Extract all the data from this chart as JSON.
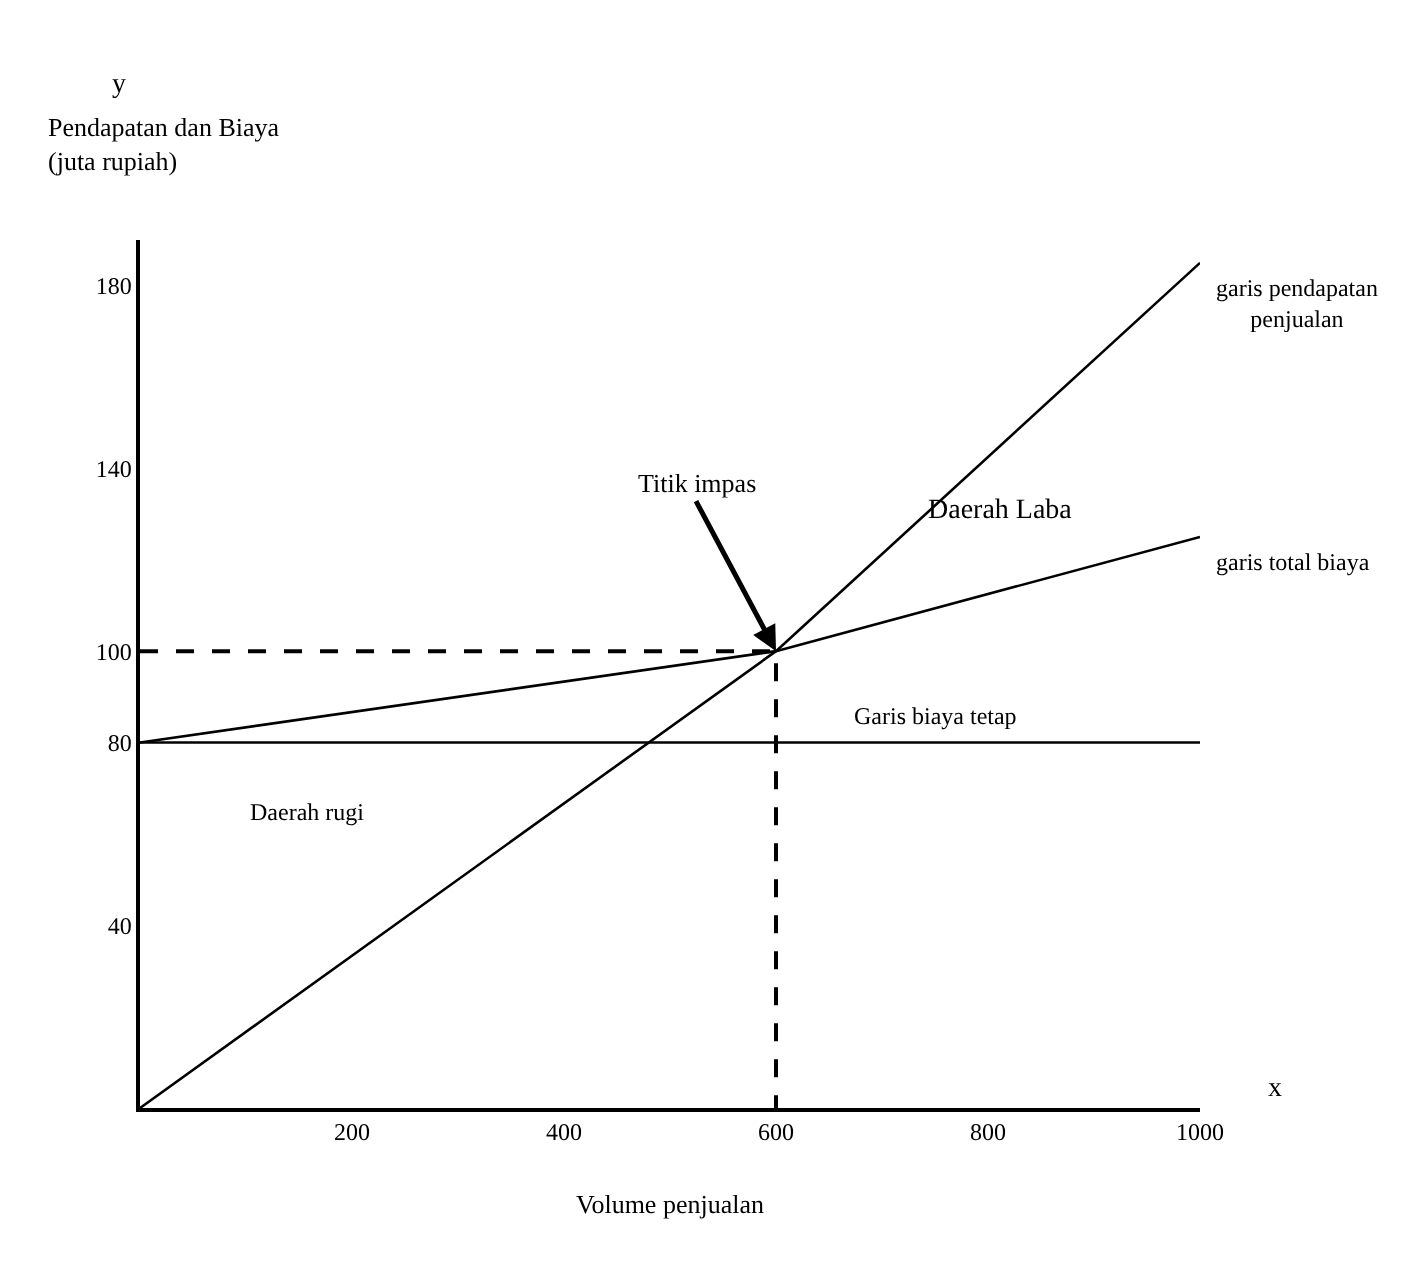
{
  "chart_data": {
    "type": "line",
    "xlabel": "Volume penjualan",
    "ylabel": "Pendapatan dan Biaya\n(juta rupiah)",
    "xlim": [
      0,
      1000
    ],
    "ylim": [
      0,
      190
    ],
    "xticks": [
      200,
      400,
      600,
      800,
      1000
    ],
    "yticks": [
      40,
      80,
      100,
      140,
      180
    ],
    "legend": false,
    "marker": "none",
    "series": [
      {
        "name": "garis pendapatan\npenjualan",
        "color": "#000000",
        "x": [
          0,
          600,
          1000
        ],
        "values": [
          0,
          100,
          185
        ]
      },
      {
        "name": "garis total biaya",
        "color": "#000000",
        "x": [
          0,
          600,
          1000
        ],
        "values": [
          80,
          100,
          125
        ]
      },
      {
        "color": "#000000",
        "x": [
          0,
          600,
          600
        ],
        "values": [
          100,
          100,
          0
        ],
        "line_style": "dashed"
      }
    ],
    "ref_lines": [
      {
        "axis": "y",
        "value": 80,
        "label": "Garis biaya tetap",
        "color": "#000000"
      }
    ],
    "annotations": [
      {
        "text": "Titik impas",
        "x": 600,
        "y": 100
      },
      "Daerah Laba",
      "Daerah rugi",
      "y",
      "x"
    ]
  }
}
